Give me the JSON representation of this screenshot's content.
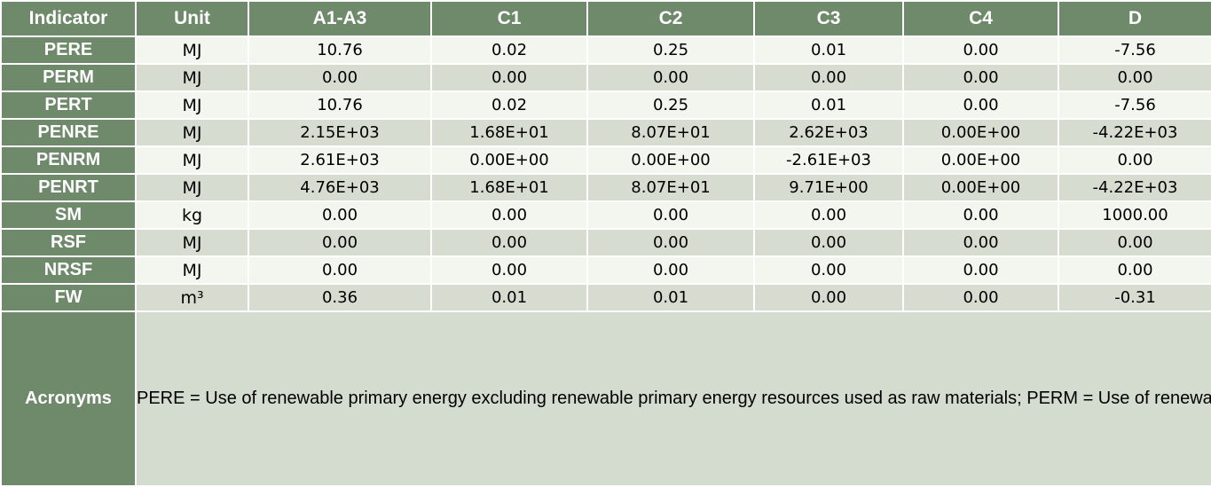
{
  "headers": [
    "Indicator",
    "Unit",
    "A1-A3",
    "C1",
    "C2",
    "C3",
    "C4",
    "D"
  ],
  "rows": [
    {
      "indicator": "PERE",
      "unit": "MJ",
      "values": [
        "10.76",
        "0.02",
        "0.25",
        "0.01",
        "0.00",
        "-7.56"
      ]
    },
    {
      "indicator": "PERM",
      "unit": "MJ",
      "values": [
        "0.00",
        "0.00",
        "0.00",
        "0.00",
        "0.00",
        "0.00"
      ]
    },
    {
      "indicator": "PERT",
      "unit": "MJ",
      "values": [
        "10.76",
        "0.02",
        "0.25",
        "0.01",
        "0.00",
        "-7.56"
      ]
    },
    {
      "indicator": "PENRE",
      "unit": "MJ",
      "values": [
        "2.15E+03",
        "1.68E+01",
        "8.07E+01",
        "2.62E+03",
        "0.00E+00",
        "-4.22E+03"
      ]
    },
    {
      "indicator": "PENRM",
      "unit": "MJ",
      "values": [
        "2.61E+03",
        "0.00E+00",
        "0.00E+00",
        "-2.61E+03",
        "0.00E+00",
        "0.00"
      ]
    },
    {
      "indicator": "PENRT",
      "unit": "MJ",
      "values": [
        "4.76E+03",
        "1.68E+01",
        "8.07E+01",
        "9.71E+00",
        "0.00E+00",
        "-4.22E+03"
      ]
    },
    {
      "indicator": "SM",
      "unit": "kg",
      "values": [
        "0.00",
        "0.00",
        "0.00",
        "0.00",
        "0.00",
        "1000.00"
      ]
    },
    {
      "indicator": "RSF",
      "unit": "MJ",
      "values": [
        "0.00",
        "0.00",
        "0.00",
        "0.00",
        "0.00",
        "0.00"
      ]
    },
    {
      "indicator": "NRSF",
      "unit": "MJ",
      "values": [
        "0.00",
        "0.00",
        "0.00",
        "0.00",
        "0.00",
        "0.00"
      ]
    },
    {
      "indicator": "FW",
      "unit": "m³",
      "values": [
        "0.36",
        "0.01",
        "0.01",
        "0.00",
        "0.00",
        "-0.31"
      ]
    }
  ],
  "acronyms": {
    "label": "Acronyms",
    "text": "PERE = Use of renewable primary energy excluding renewable primary energy resources used as raw materials; PERM = Use of renewable primary energy resources used as raw materials; PERT = Total use of renewable primary energy resources; PENRE = Use of non-renewable primary energy excluding non-renewable primary energy resources used as raw materials; PENRM = Use of non-renewable primary energy resources used as raw materials; PENRT = Total use of non-renewable primary energy re-sources; SM = Use of secondary material; RSF = Use of renewable secondary fuels; NRSF = Use of non-renewable secondary fuels; FW = Use of net fresh water"
  },
  "colors": {
    "header_green": "#6f8a6b",
    "row_light": "#f3f6ef",
    "row_dark": "#d6ddd0",
    "acronym_bg": "#d3dccf"
  }
}
